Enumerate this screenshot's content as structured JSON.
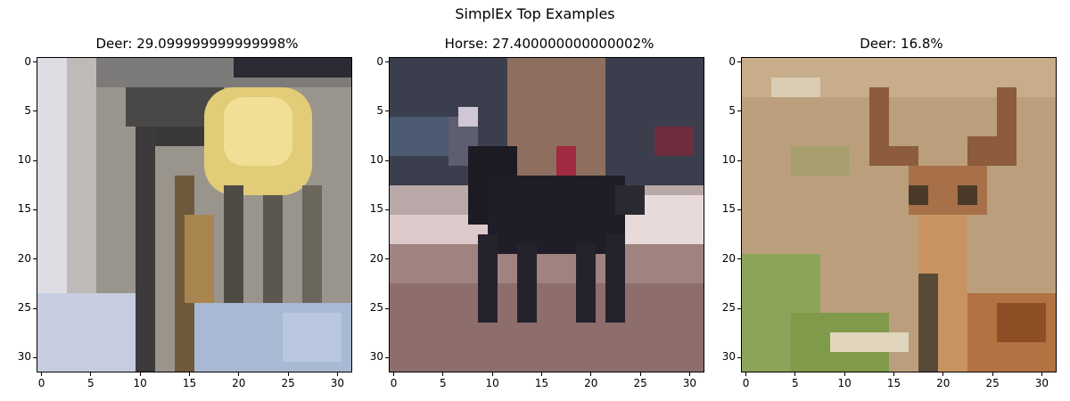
{
  "figure": {
    "title": "SimplEx Top Examples"
  },
  "panels": [
    {
      "title": "Deer: 29.099999999999998%",
      "image": "blurry-object-with-yellow-blob-and-wooden-legs",
      "palette": {
        "bg1": "#d9d8d8",
        "bg2": "#8f8c87",
        "dark": "#2b2a33",
        "yellow": "#e6d17f",
        "wood": "#8a6c45",
        "blue": "#a8b4c9"
      }
    },
    {
      "title": "Horse: 27.400000000000002%",
      "image": "black-horse-walking-on-track",
      "palette": {
        "sky": "#3a3d4a",
        "road": "#9a7f6f",
        "pale": "#d8c7c6",
        "horse": "#1c1b24",
        "red": "#8c2c3c",
        "ground": "#9b7574"
      }
    },
    {
      "title": "Deer: 16.8%",
      "image": "deer-with-antlers-in-grass",
      "palette": {
        "grass": "#bfa07a",
        "green": "#8aa056",
        "antler": "#8e5a39",
        "body": "#c99364",
        "dark": "#5a4a33",
        "light": "#e2d3b4"
      }
    }
  ],
  "axis": {
    "x_ticks": [
      "0",
      "5",
      "10",
      "15",
      "20",
      "25",
      "30"
    ],
    "y_ticks": [
      "0",
      "5",
      "10",
      "15",
      "20",
      "25",
      "30"
    ]
  }
}
